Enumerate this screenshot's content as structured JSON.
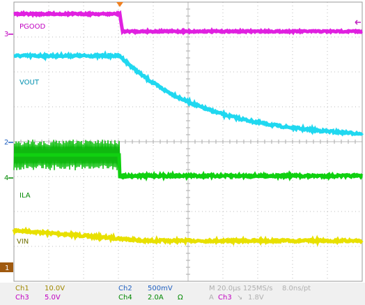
{
  "traces": [
    {
      "label": "PGOOD",
      "marker": "3"
    },
    {
      "label": "VOUT",
      "marker": "2"
    },
    {
      "label": "ILA",
      "marker": "4"
    },
    {
      "label": "VIN",
      "marker": "1"
    }
  ],
  "status": {
    "ch1": "Ch1",
    "ch1_scale": "10.0V",
    "ch2": "Ch2",
    "ch2_scale": "500mV",
    "ch3": "Ch3",
    "ch3_scale": "5.0V",
    "ch4": "Ch4",
    "ch4_scale": "2.0A",
    "ch4_unit": "Ω",
    "timebase": "M 20.0µs 125MS/s",
    "resolution": "8.0ns/pt",
    "trigger": "A",
    "trigger_source": "Ch3",
    "trigger_slope": "↘",
    "trigger_level": "1.8V"
  }
}
